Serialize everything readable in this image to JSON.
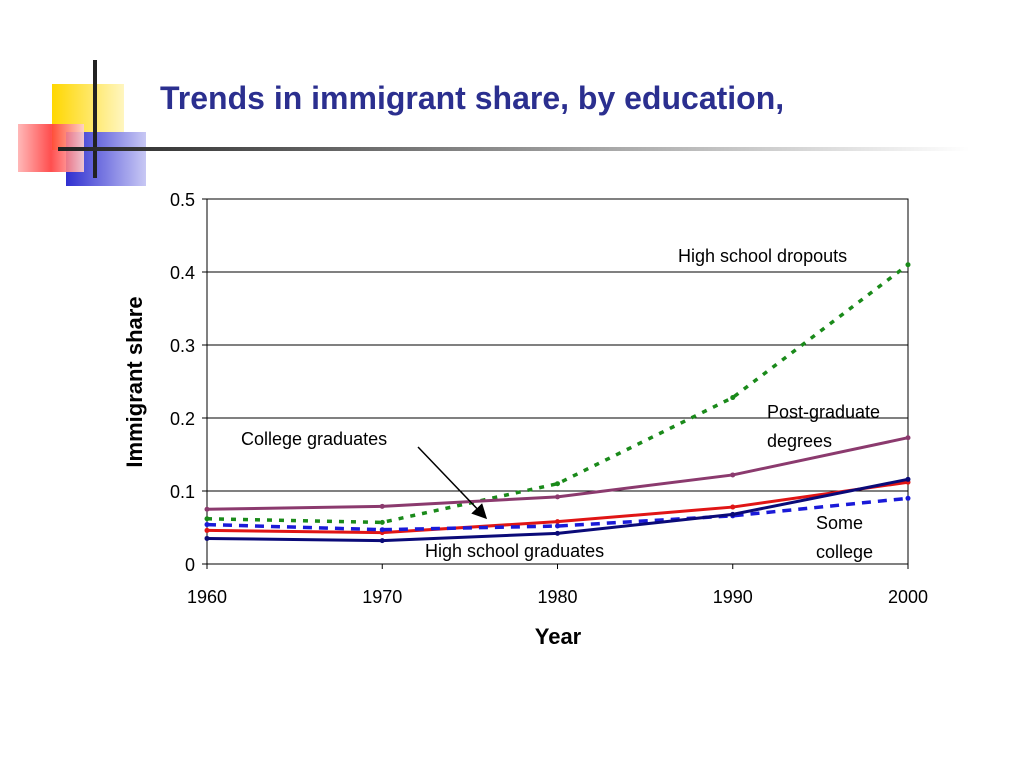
{
  "slide": {
    "title": "Trends in immigrant share, by education,",
    "colors": {
      "title": "#2b2f8f",
      "accent_yellow": "#ffd700",
      "accent_red": "#ff3b3b",
      "accent_blue": "#2f2fd0"
    }
  },
  "chart_data": {
    "type": "line",
    "title": "",
    "xlabel": "Year",
    "ylabel": "Immigrant share",
    "x": [
      1960,
      1970,
      1980,
      1990,
      2000
    ],
    "xlim": [
      1960,
      2000
    ],
    "ylim": [
      0,
      0.5
    ],
    "yticks": [
      "0",
      "0.1",
      "0.2",
      "0.3",
      "0.4",
      "0.5"
    ],
    "xticks": [
      "1960",
      "1970",
      "1980",
      "1990",
      "2000"
    ],
    "grid": "horizontal",
    "series": [
      {
        "name": "High school dropouts",
        "values": [
          0.062,
          0.057,
          0.11,
          0.228,
          0.41
        ],
        "color": "#1a8a1a",
        "style": "dotted"
      },
      {
        "name": "Post-graduate degrees",
        "values": [
          0.075,
          0.079,
          0.092,
          0.122,
          0.173
        ],
        "color": "#8b3a6e",
        "style": "solid"
      },
      {
        "name": "College graduates",
        "values": [
          0.046,
          0.043,
          0.058,
          0.078,
          0.112
        ],
        "color": "#e01515",
        "style": "solid"
      },
      {
        "name": "Some college",
        "values": [
          0.054,
          0.047,
          0.052,
          0.066,
          0.09
        ],
        "color": "#1a1ad8",
        "style": "dashed"
      },
      {
        "name": "High school graduates",
        "values": [
          0.035,
          0.032,
          0.042,
          0.068,
          0.116
        ],
        "color": "#0a0a78",
        "style": "solid"
      }
    ],
    "annotations": [
      {
        "text": "High school dropouts"
      },
      {
        "text": "Post-graduate"
      },
      {
        "text": "degrees"
      },
      {
        "text": "College graduates"
      },
      {
        "text": "Some"
      },
      {
        "text": "college"
      },
      {
        "text": "High school graduates"
      }
    ]
  }
}
